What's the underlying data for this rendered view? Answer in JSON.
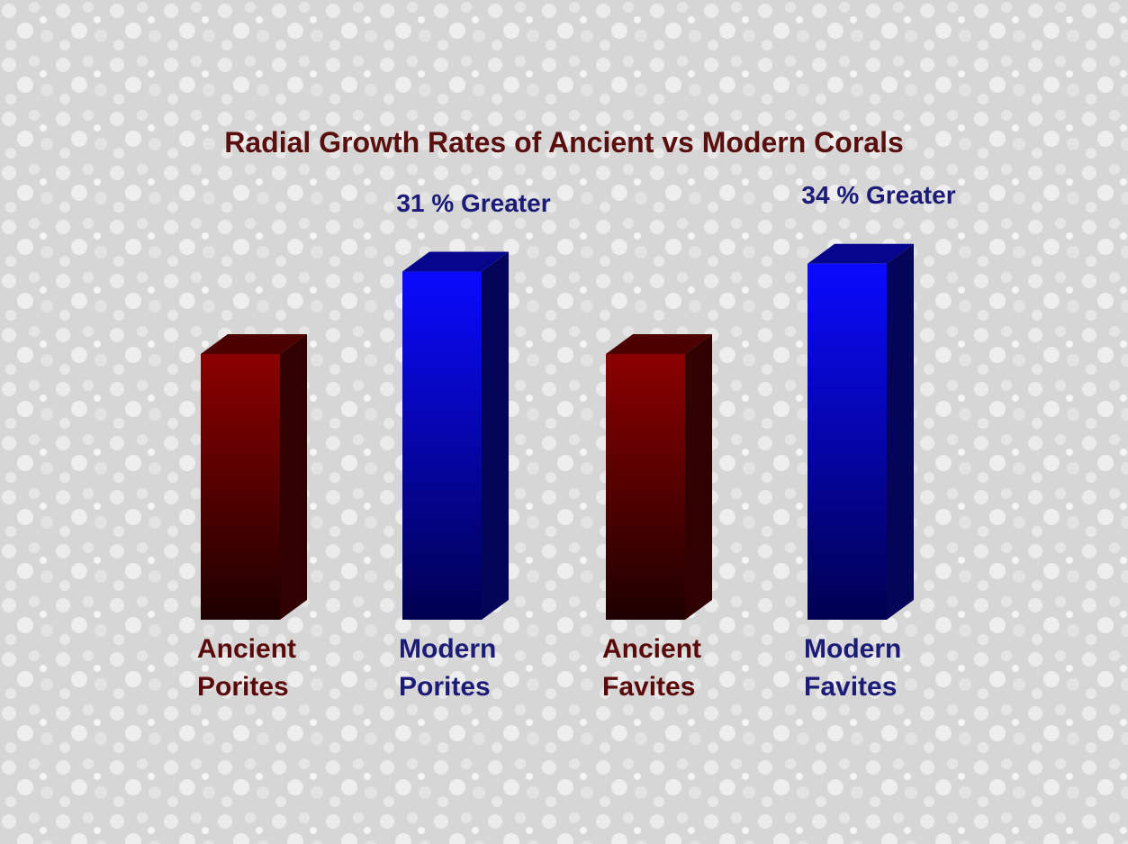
{
  "chart_data": {
    "type": "bar3d",
    "title": "Radial Growth Rates of Ancient vs Modern Corals",
    "categories": [
      "Ancient Porites",
      "Modern Porites",
      "Ancient Favites",
      "Modern Favites"
    ],
    "values": [
      100,
      131,
      100,
      134
    ],
    "colors": [
      "#8b0000",
      "#0a0aff",
      "#8b0000",
      "#0a0aff"
    ],
    "label_colors": [
      "#5a0a0a",
      "#1c1c78",
      "#5a0a0a",
      "#1c1c78"
    ],
    "annotations": [
      "31 % Greater",
      "34 % Greater"
    ]
  }
}
